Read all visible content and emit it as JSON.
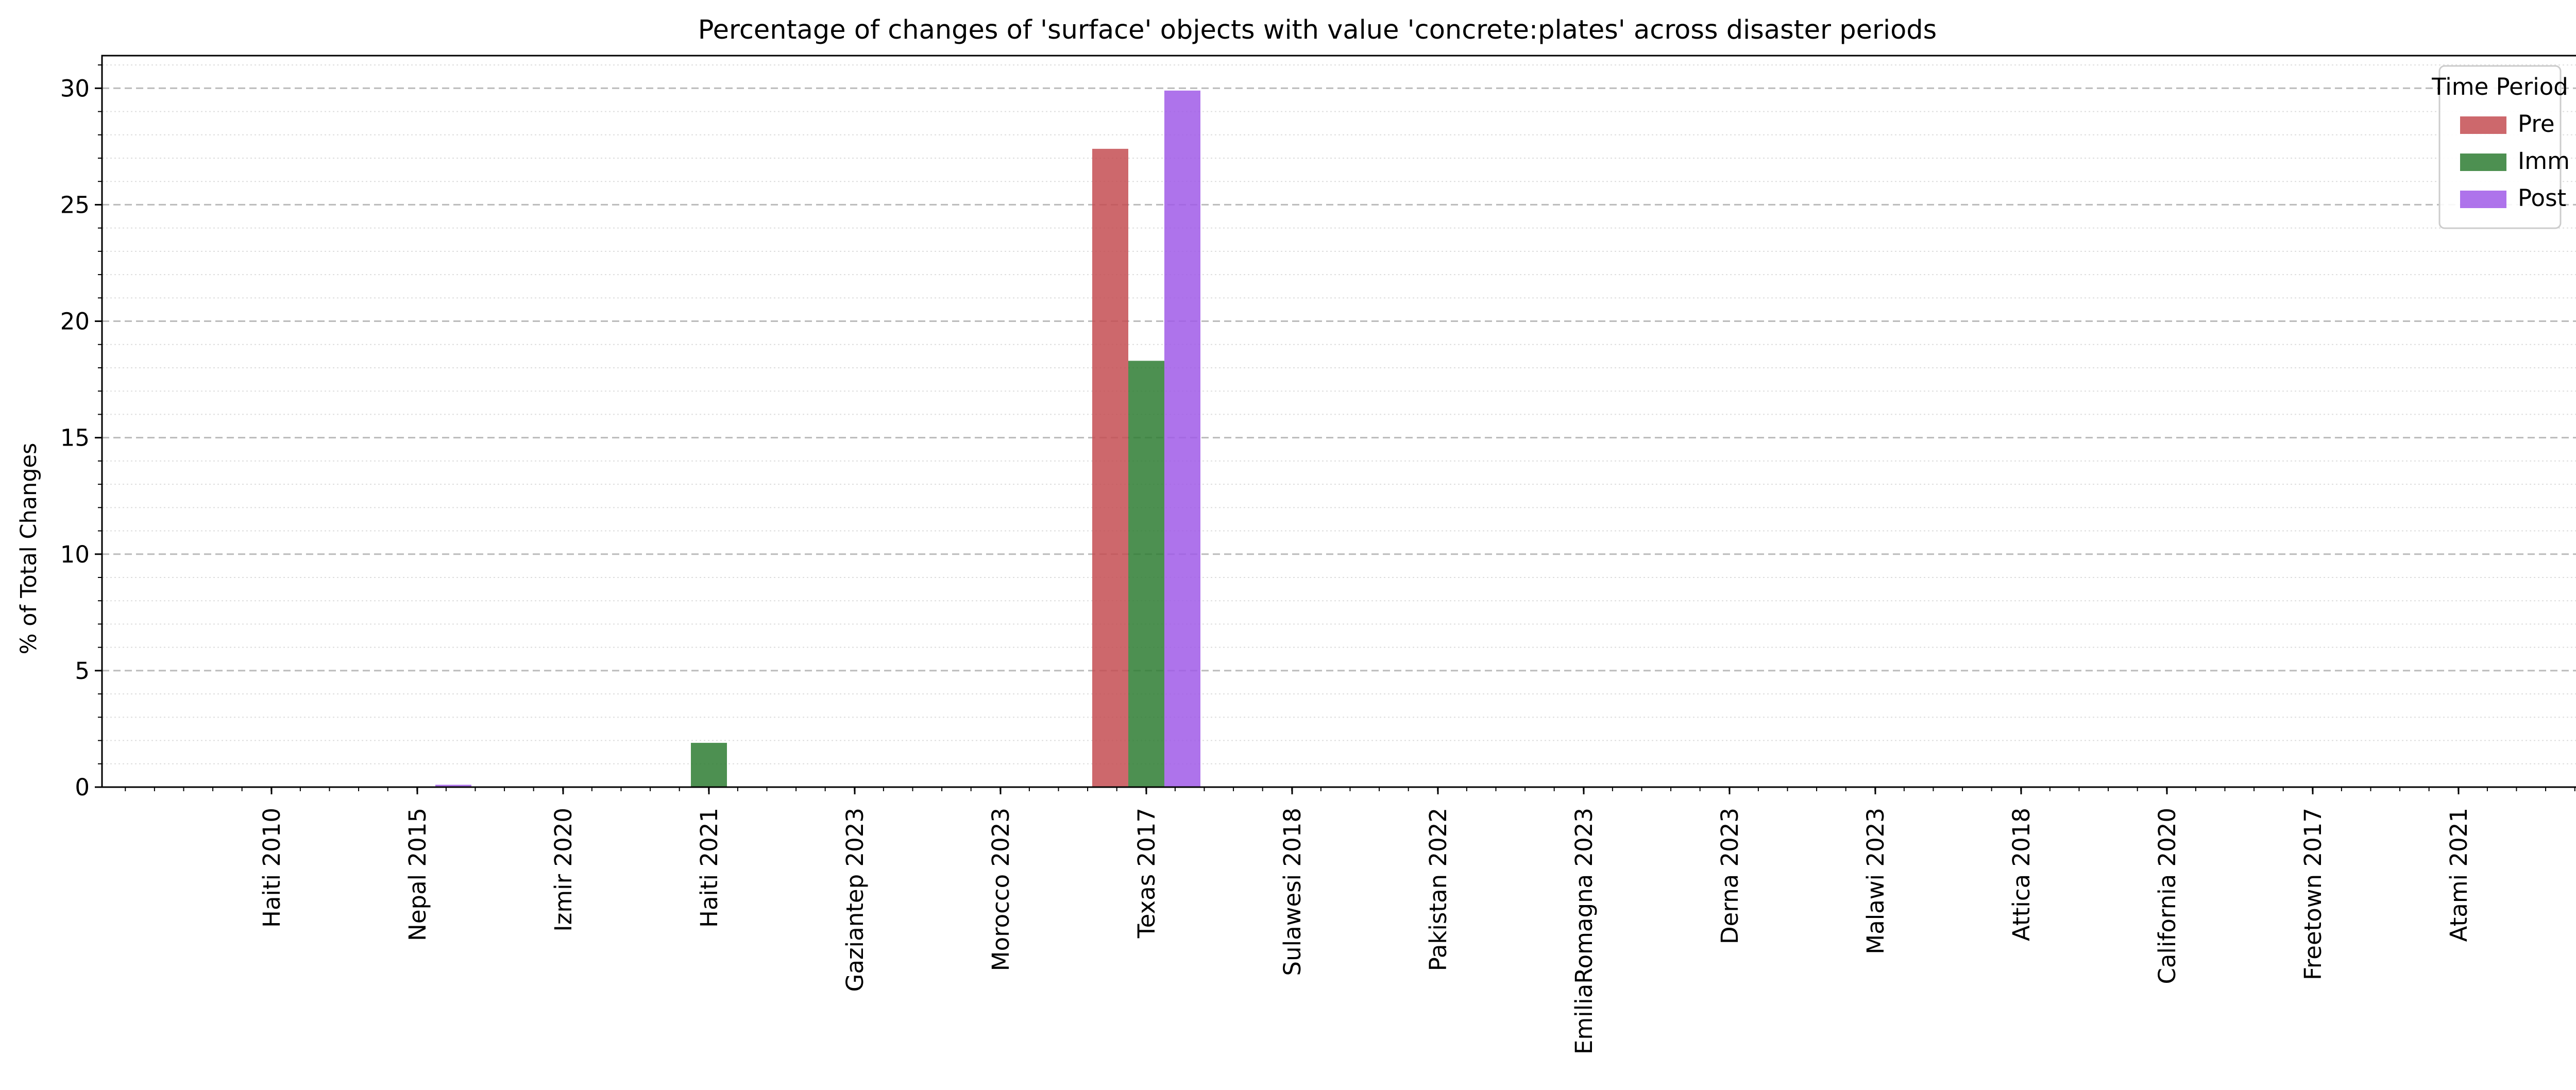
{
  "chart_data": {
    "type": "bar",
    "title": "Percentage of changes of 'surface' objects with value 'concrete:plates' across disaster periods",
    "xlabel": "",
    "ylabel": "% of Total Changes",
    "ylim": [
      0,
      31.4
    ],
    "yticks": [
      0,
      5,
      10,
      15,
      20,
      25,
      30
    ],
    "grid": {
      "major": "dashed",
      "minor": "dotted",
      "axis": "y"
    },
    "legend": {
      "title": "Time Period",
      "placement": "top-right"
    },
    "categories": [
      "Haiti 2010",
      "Nepal 2015",
      "Izmir 2020",
      "Haiti 2021",
      "Gaziantep 2023",
      "Morocco 2023",
      "Texas 2017",
      "Sulawesi 2018",
      "Pakistan 2022",
      "EmiliaRomagna 2023",
      "Derna 2023",
      "Malawi 2023",
      "Attica 2018",
      "California 2020",
      "Freetown 2017",
      "Atami 2021"
    ],
    "series": [
      {
        "name": "Pre",
        "color": "#c44e52",
        "values": [
          0,
          0,
          0,
          0,
          0,
          0,
          27.4,
          0,
          0,
          0,
          0,
          0,
          0,
          0,
          0,
          0
        ]
      },
      {
        "name": "Imm",
        "color": "#2e7d32",
        "values": [
          0,
          0,
          0,
          1.9,
          0,
          0,
          18.3,
          0,
          0,
          0,
          0,
          0,
          0,
          0,
          0,
          0
        ]
      },
      {
        "name": "Post",
        "color": "#a05ae8",
        "values": [
          0,
          0.1,
          0,
          0,
          0,
          0,
          29.9,
          0,
          0,
          0,
          0,
          0,
          0,
          0,
          0,
          0
        ]
      }
    ]
  }
}
